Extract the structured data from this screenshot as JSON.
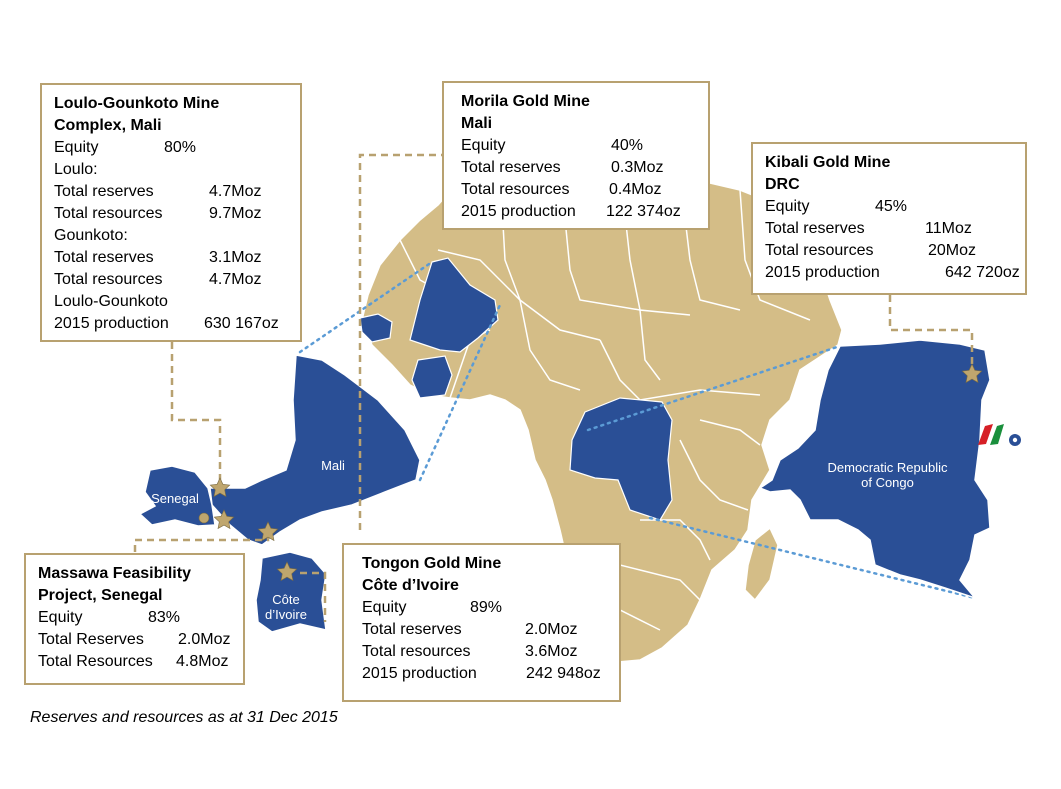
{
  "boxes": {
    "loulo": {
      "title1": "Loulo-Gounkoto Mine",
      "title2": "Complex, Mali",
      "equity_label": "Equity",
      "equity_value": "80%",
      "loulo_label": "Loulo:",
      "loulo_reserves_label": "Total reserves",
      "loulo_reserves_value": "4.7Moz",
      "loulo_resources_label": "Total resources",
      "loulo_resources_value": "9.7Moz",
      "gounkoto_label": "Gounkoto:",
      "gounkoto_reserves_label": "Total reserves",
      "gounkoto_reserves_value": "3.1Moz",
      "gounkoto_resources_label": "Total resources",
      "gounkoto_resources_value": "4.7Moz",
      "combined_label": "Loulo-Gounkoto",
      "production_label": "2015 production",
      "production_value": "630 167oz"
    },
    "morila": {
      "title1": "Morila Gold Mine",
      "title2": "Mali",
      "equity_label": "Equity",
      "equity_value": "40%",
      "reserves_label": "Total reserves",
      "reserves_value": "0.3Moz",
      "resources_label": "Total resources",
      "resources_value": "0.4Moz",
      "production_label": "2015 production",
      "production_value": "122 374oz"
    },
    "kibali": {
      "title1": "Kibali Gold Mine",
      "title2": "DRC",
      "equity_label": "Equity",
      "equity_value": "45%",
      "reserves_label": "Total reserves",
      "reserves_value": "11Moz",
      "resources_label": "Total resources",
      "resources_value": "20Moz",
      "production_label": "2015 production",
      "production_value": "642 720oz"
    },
    "massawa": {
      "title1": "Massawa Feasibility",
      "title2": "Project, Senegal",
      "equity_label": "Equity",
      "equity_value": "83%",
      "reserves_label": "Total Reserves",
      "reserves_value": "2.0Moz",
      "resources_label": "Total Resources",
      "resources_value": "4.8Moz"
    },
    "tongon": {
      "title1": "Tongon Gold Mine",
      "title2": "Côte d’Ivoire",
      "equity_label": "Equity",
      "equity_value": "89%",
      "reserves_label": "Total reserves",
      "reserves_value": "2.0Moz",
      "resources_label": "Total resources",
      "resources_value": "3.6Moz",
      "production_label": "2015 production",
      "production_value": "242 948oz"
    }
  },
  "map_labels": {
    "mali": "Mali",
    "senegal": "Senegal",
    "cote_line1": "Côte",
    "cote_line2": "d’Ivoire",
    "drc_line1": "Democratic Republic",
    "drc_line2": "of Congo"
  },
  "footnote": "Reserves and resources as at 31 Dec 2015",
  "colors": {
    "land": "#d4bd87",
    "highlight": "#2a4f96",
    "border_gold": "#b8a170",
    "mine_star": "#bfa66e",
    "zoom_line": "#5b9bd5"
  },
  "icons": {
    "mine": "star-icon",
    "project": "dot-icon",
    "logo": "logo-icon"
  }
}
